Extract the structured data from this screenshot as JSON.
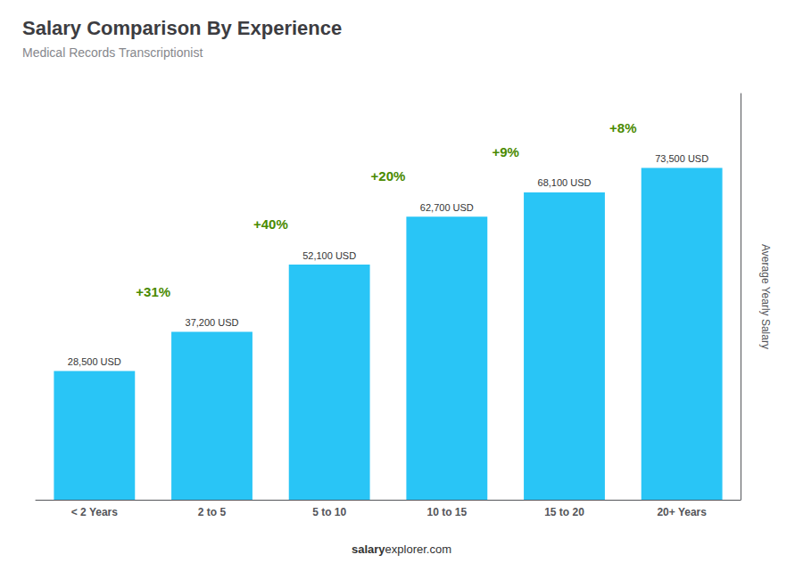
{
  "chart_data": {
    "type": "bar",
    "title": "Salary Comparison By Experience",
    "subtitle": "Medical Records Transcriptionist",
    "ylabel": "Average Yearly Salary",
    "categories": [
      "< 2 Years",
      "2 to 5",
      "5 to 10",
      "10 to 15",
      "15 to 20",
      "20+ Years"
    ],
    "values": [
      28500,
      37200,
      52100,
      62700,
      68100,
      73500
    ],
    "value_labels": [
      "28,500 USD",
      "37,200 USD",
      "52,100 USD",
      "62,700 USD",
      "68,100 USD",
      "73,500 USD"
    ],
    "data_labels": true,
    "color": "#29C5F6",
    "ylim": [
      0,
      90000
    ],
    "grid": false,
    "tick_labels": "x",
    "annotations": [
      "+31%",
      "+40%",
      "+20%",
      "+9%",
      "+8%"
    ],
    "footer": [
      "salary",
      "explorer.com"
    ]
  }
}
